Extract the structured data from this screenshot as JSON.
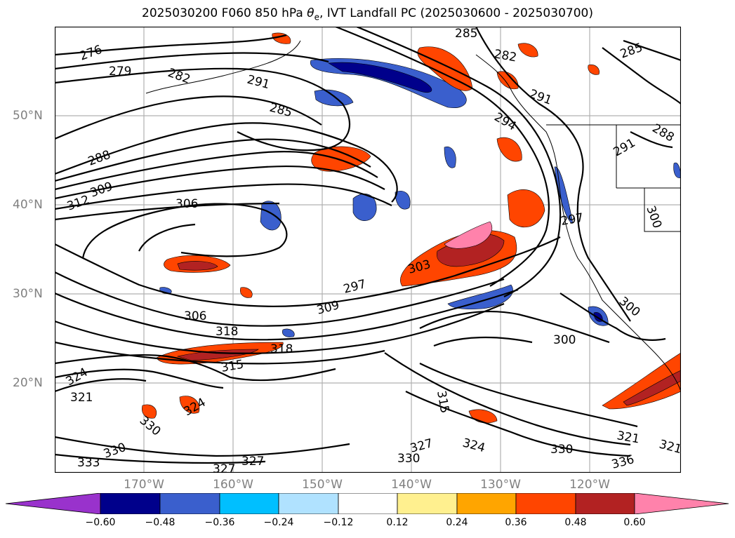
{
  "title": {
    "prefix": "2025030200 F060 850 hPa ",
    "theta": "θ",
    "theta_sub": "e",
    "suffix": ", IVT Landfall PC (2025030600 - 2025030700)"
  },
  "lat_labels": [
    "50°N",
    "40°N",
    "30°N",
    "20°N"
  ],
  "lon_labels": [
    "170°W",
    "160°W",
    "150°W",
    "140°W",
    "130°W",
    "120°W"
  ],
  "colorbar": {
    "ticks": [
      "−0.60",
      "−0.48",
      "−0.36",
      "−0.24",
      "−0.12",
      "0.12",
      "0.24",
      "0.36",
      "0.48",
      "0.60"
    ],
    "colors": [
      "#9932cc",
      "#00008b",
      "#3a5fcd",
      "#00bfff",
      "#b0e2ff",
      "#ffffff",
      "#fff08f",
      "#ffa500",
      "#ff4500",
      "#b22222",
      "#ff82ab",
      "#ff82ab"
    ]
  },
  "contour_labels": [
    "276",
    "279",
    "282",
    "291",
    "285",
    "288",
    "309",
    "312",
    "306",
    "297",
    "309",
    "306",
    "318",
    "318",
    "315",
    "324",
    "321",
    "330",
    "324",
    "333",
    "330",
    "327",
    "327",
    "330",
    "327",
    "324",
    "330",
    "321",
    "321",
    "336",
    "300",
    "315",
    "294",
    "291",
    "285",
    "282",
    "285",
    "288",
    "291",
    "300",
    "297",
    "300",
    "303"
  ],
  "colors": {
    "contour": "#000000",
    "grid": "#b0b0b0",
    "coast": "#000000",
    "axis_label": "#808080"
  }
}
